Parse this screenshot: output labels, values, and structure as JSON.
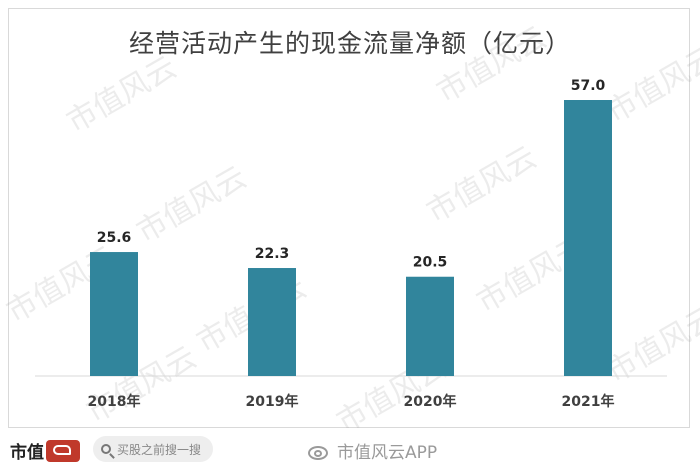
{
  "chart_data": {
    "type": "bar",
    "title": "经营活动产生的现金流量净额（亿元）",
    "categories": [
      "2018年",
      "2019年",
      "2020年",
      "2021年"
    ],
    "values": [
      25.6,
      22.3,
      20.5,
      57.0
    ],
    "value_labels": [
      "25.6",
      "22.3",
      "20.5",
      "57.0"
    ],
    "xlabel": "",
    "ylabel": "",
    "ylim": [
      0,
      57.0
    ],
    "grid": false,
    "legend": "none",
    "bar_color": "#31859c",
    "axis_color": "#d9d9d9"
  },
  "watermark": {
    "text": "市值风云"
  },
  "footer": {
    "brand": "市值",
    "search_placeholder": "买股之前搜一搜",
    "weibo_text": "市值风云APP",
    "brand_color": "#c0392b"
  }
}
